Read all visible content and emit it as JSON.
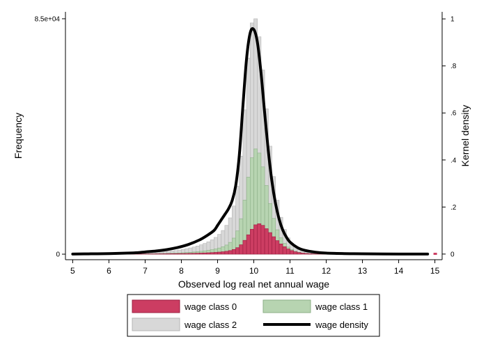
{
  "chart_data": {
    "type": "bar",
    "title": "",
    "xlabel": "Observed log real net annual wage",
    "ylabel_left": "Frequency",
    "ylabel_right": "Kernel density",
    "xlim": [
      4.8,
      15.2
    ],
    "ylim_left": [
      -2000,
      87500
    ],
    "ylim_right": [
      -0.024,
      1.03
    ],
    "x_ticks": [
      5,
      6,
      7,
      8,
      9,
      10,
      11,
      12,
      13,
      14,
      15
    ],
    "x_tick_labels": [
      "5",
      "6",
      "7",
      "8",
      "9",
      "10",
      "11",
      "12",
      "13",
      "14",
      "15"
    ],
    "y_left_ticks": [
      0,
      85000
    ],
    "y_left_tick_labels": [
      "0",
      "8.5e+04"
    ],
    "y_right_ticks": [
      0,
      0.2,
      0.4,
      0.6,
      0.8,
      1.0
    ],
    "y_right_tick_labels": [
      "0",
      ".2",
      ".4",
      ".6",
      ".8",
      "1"
    ],
    "grid": false,
    "bin_width": 0.1,
    "bins": [
      6.0,
      6.1,
      6.2,
      6.3,
      6.4,
      6.5,
      6.6,
      6.7,
      6.8,
      6.9,
      7.0,
      7.1,
      7.2,
      7.3,
      7.4,
      7.5,
      7.6,
      7.7,
      7.8,
      7.9,
      8.0,
      8.1,
      8.2,
      8.3,
      8.4,
      8.5,
      8.6,
      8.7,
      8.8,
      8.9,
      9.0,
      9.1,
      9.2,
      9.3,
      9.4,
      9.5,
      9.6,
      9.7,
      9.8,
      9.9,
      10.0,
      10.1,
      10.2,
      10.3,
      10.4,
      10.5,
      10.6,
      10.7,
      10.8,
      10.9,
      11.0,
      11.1,
      11.2,
      11.3,
      11.4,
      11.5,
      11.6,
      11.7,
      11.8,
      11.9,
      12.0,
      12.1,
      12.2,
      12.3,
      12.4,
      12.5,
      12.6,
      12.7,
      12.8,
      12.9
    ],
    "series": [
      {
        "name": "wage class 2",
        "color": "#d8d8d8",
        "stroke": "#b4b4b4",
        "values": [
          100,
          120,
          140,
          160,
          180,
          210,
          240,
          280,
          320,
          370,
          430,
          500,
          580,
          670,
          770,
          880,
          1000,
          1150,
          1320,
          1510,
          1730,
          1980,
          2260,
          2580,
          2950,
          3380,
          3880,
          4470,
          5180,
          6050,
          7150,
          8550,
          10400,
          13100,
          17400,
          24500,
          35400,
          52100,
          70800,
          83500,
          85000,
          78500,
          66500,
          52500,
          39000,
          28000,
          19500,
          13300,
          8900,
          5900,
          3900,
          2600,
          1700,
          1150,
          780,
          530,
          360,
          250,
          170,
          120,
          85,
          60,
          45,
          35,
          28,
          22,
          18,
          14,
          10,
          8
        ]
      },
      {
        "name": "wage class 1",
        "color": "#b7d4b1",
        "stroke": "#8caf87",
        "values": [
          30,
          36,
          42,
          48,
          55,
          63,
          72,
          82,
          94,
          108,
          125,
          145,
          168,
          195,
          225,
          260,
          300,
          345,
          395,
          455,
          520,
          600,
          690,
          790,
          910,
          1050,
          1210,
          1400,
          1620,
          1890,
          2230,
          2680,
          3300,
          4250,
          5800,
          8400,
          12800,
          19500,
          27800,
          34800,
          38000,
          36500,
          31500,
          24800,
          18300,
          12900,
          8800,
          5900,
          3900,
          2550,
          1650,
          1060,
          680,
          440,
          285,
          185,
          120,
          80,
          54,
          37,
          26,
          18,
          13,
          10,
          8,
          6,
          5,
          4,
          3,
          2
        ]
      },
      {
        "name": "wage class 0",
        "color": "#cc3d62",
        "stroke": "#9c1f41",
        "values": [
          20,
          24,
          28,
          32,
          36,
          42,
          48,
          55,
          62,
          70,
          80,
          90,
          100,
          112,
          125,
          140,
          155,
          170,
          190,
          210,
          235,
          260,
          290,
          320,
          360,
          400,
          450,
          510,
          580,
          660,
          760,
          880,
          1050,
          1300,
          1700,
          2350,
          3400,
          5000,
          7000,
          9000,
          10600,
          11000,
          10400,
          9200,
          7800,
          6300,
          4900,
          3700,
          2700,
          1900,
          1300,
          880,
          590,
          390,
          260,
          170,
          110,
          72,
          47,
          31,
          21,
          14,
          10,
          7,
          5,
          4,
          3,
          2,
          2,
          1
        ]
      }
    ],
    "density": {
      "name": "wage density",
      "color": "#000000",
      "x": [
        5.0,
        5.5,
        6.0,
        6.5,
        6.8,
        7.0,
        7.3,
        7.6,
        7.9,
        8.2,
        8.5,
        8.7,
        8.9,
        9.0,
        9.1,
        9.2,
        9.3,
        9.4,
        9.5,
        9.6,
        9.7,
        9.8,
        9.9,
        10.0,
        10.1,
        10.2,
        10.3,
        10.4,
        10.5,
        10.6,
        10.7,
        10.8,
        10.9,
        11.0,
        11.2,
        11.4,
        11.7,
        12.0,
        12.5,
        13.0,
        14.0,
        14.8
      ],
      "y": [
        0.0,
        0.001,
        0.002,
        0.004,
        0.006,
        0.009,
        0.013,
        0.019,
        0.028,
        0.041,
        0.06,
        0.078,
        0.1,
        0.122,
        0.145,
        0.168,
        0.192,
        0.226,
        0.29,
        0.42,
        0.63,
        0.83,
        0.94,
        0.955,
        0.9,
        0.77,
        0.6,
        0.44,
        0.31,
        0.215,
        0.148,
        0.102,
        0.072,
        0.051,
        0.028,
        0.016,
        0.008,
        0.004,
        0.002,
        0.001,
        0.0,
        0.0
      ]
    },
    "outlier_bin": {
      "x": 15.0,
      "color": "#cc3d62"
    },
    "legend": {
      "placement": "bottom",
      "entries": [
        {
          "label": "wage class 0",
          "kind": "box",
          "fill": "#cc3d62",
          "stroke": "#9c1f41"
        },
        {
          "label": "wage class 1",
          "kind": "box",
          "fill": "#b7d4b1",
          "stroke": "#8caf87"
        },
        {
          "label": "wage class 2",
          "kind": "box",
          "fill": "#d8d8d8",
          "stroke": "#b4b4b4"
        },
        {
          "label": "wage density",
          "kind": "line",
          "fill": "#000000",
          "stroke": "#000000"
        }
      ]
    }
  }
}
